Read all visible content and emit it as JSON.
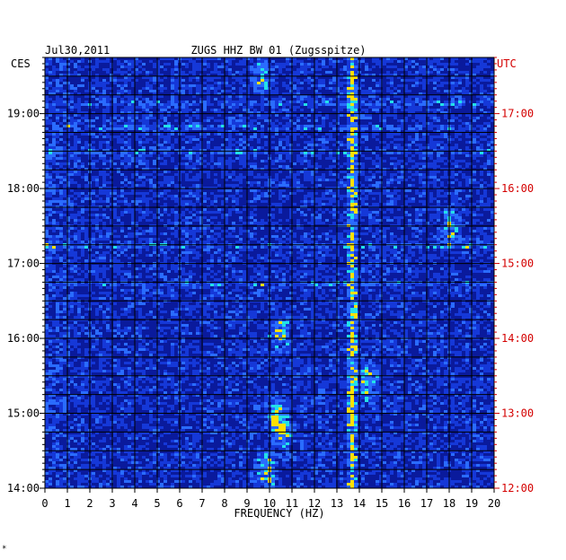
{
  "chart_data": {
    "type": "heatmap",
    "title_left": "Jul30,2011",
    "title_center": "ZUGS HHZ BW 01 (Zugsspitze)",
    "xlabel": "FREQUENCY (HZ)",
    "xlim": [
      0,
      20
    ],
    "x_ticks": [
      "0",
      "1",
      "2",
      "3",
      "4",
      "5",
      "6",
      "7",
      "8",
      "9",
      "10",
      "11",
      "12",
      "13",
      "14",
      "15",
      "16",
      "17",
      "18",
      "19",
      "20"
    ],
    "left_axis_label": "CES",
    "left_ticks": [
      "14:00",
      "15:00",
      "16:00",
      "17:00",
      "18:00",
      "19:00"
    ],
    "right_axis_label": "UTC",
    "right_ticks": [
      "12:00",
      "13:00",
      "14:00",
      "15:00",
      "16:00",
      "17:00"
    ],
    "time_range_local": [
      "14:00",
      "19:45"
    ],
    "colors": {
      "background": "#0a1a9c",
      "low": "#0010a0",
      "mid": "#2a6cff",
      "high": "#22e0e8",
      "peak": "#ffe000",
      "right_axis": "#d40000"
    },
    "persistent_lines_hz": [
      13.5,
      13.65
    ],
    "broadband_events_local": [
      "16:45",
      "17:15",
      "18:30",
      "18:50",
      "19:10"
    ],
    "hotspots": [
      {
        "hz": 9.8,
        "time": "14:15"
      },
      {
        "hz": 10.5,
        "time": "14:45"
      },
      {
        "hz": 10.2,
        "time": "15:00"
      },
      {
        "hz": 14.3,
        "time": "15:25"
      },
      {
        "hz": 10.4,
        "time": "16:05"
      },
      {
        "hz": 9.6,
        "time": "19:30"
      },
      {
        "hz": 18.0,
        "time": "17:30"
      }
    ]
  },
  "footer": {
    "mark": "*"
  }
}
